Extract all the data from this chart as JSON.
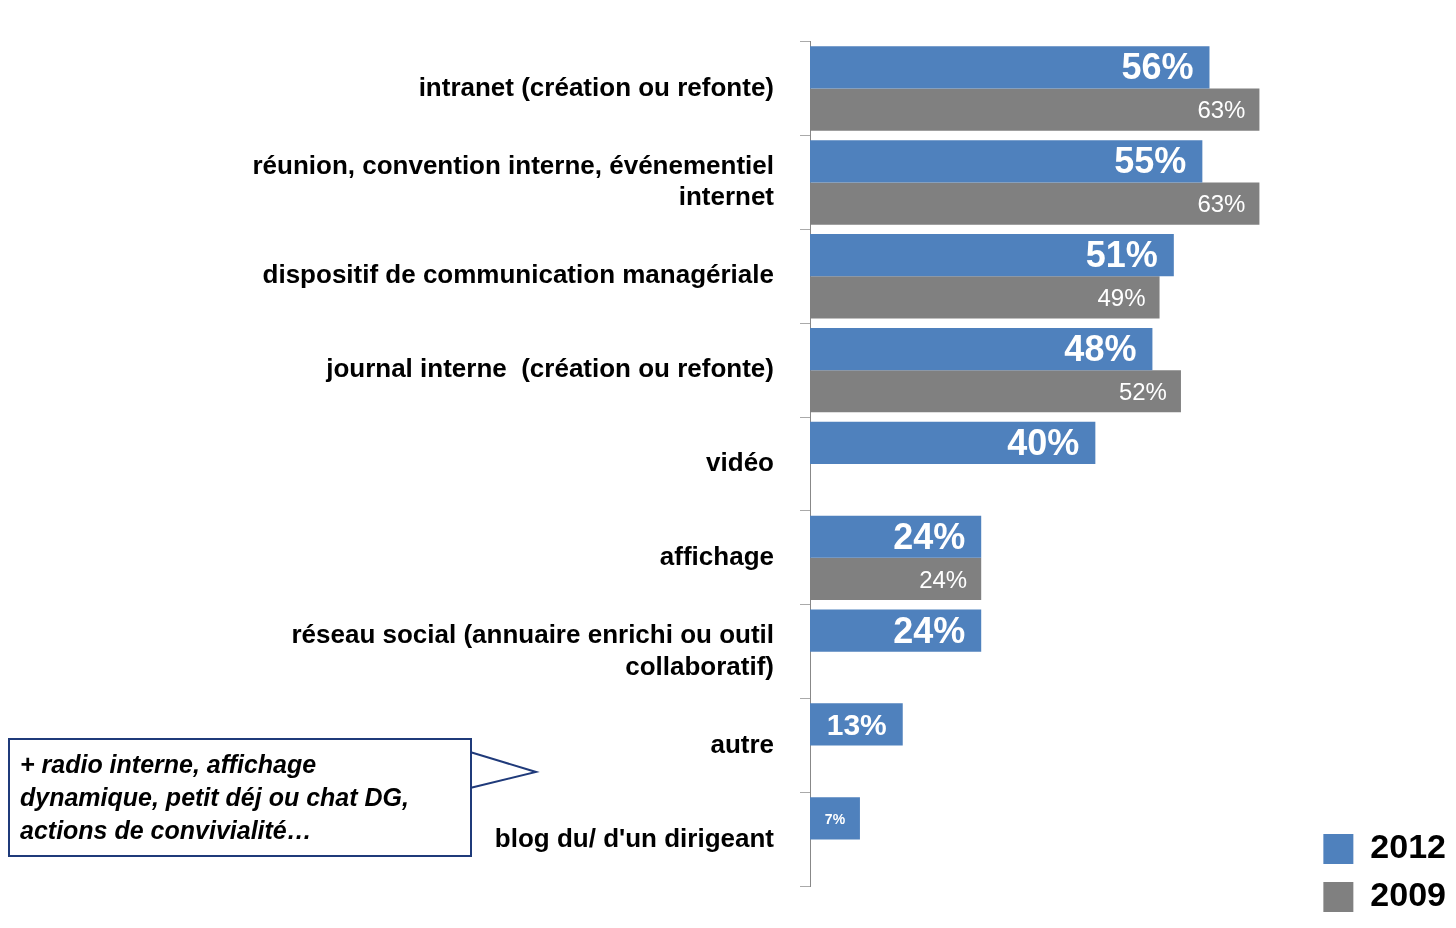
{
  "chart_data": {
    "type": "bar",
    "orientation": "horizontal",
    "categories": [
      "intranet (création ou refonte)",
      "réunion, convention interne, événementiel\ninternet",
      "dispositif de communication managériale",
      "journal interne  (création ou refonte)",
      "vidéo",
      "affichage",
      "réseau social (annuaire enrichi ou outil\ncollaboratif)",
      "autre",
      "blog du/ d'un dirigeant"
    ],
    "series": [
      {
        "name": "2012",
        "color": "#4f81bd",
        "values": [
          56,
          55,
          51,
          48,
          40,
          24,
          24,
          13,
          7
        ],
        "value_labels": [
          "56%",
          "55%",
          "51%",
          "48%",
          "40%",
          "24%",
          "24%",
          "13%",
          "7%"
        ]
      },
      {
        "name": "2009",
        "color": "#808080",
        "values": [
          63,
          63,
          49,
          52,
          null,
          24,
          null,
          null,
          null
        ],
        "value_labels": [
          "63%",
          "63%",
          "49%",
          "52%",
          null,
          "24%",
          null,
          null,
          null
        ]
      }
    ],
    "legend": "bottom right",
    "grid": false,
    "annotations": [
      "+ radio interne, affichage dynamique, petit déj ou chat DG, actions de convivialité…"
    ]
  }
}
